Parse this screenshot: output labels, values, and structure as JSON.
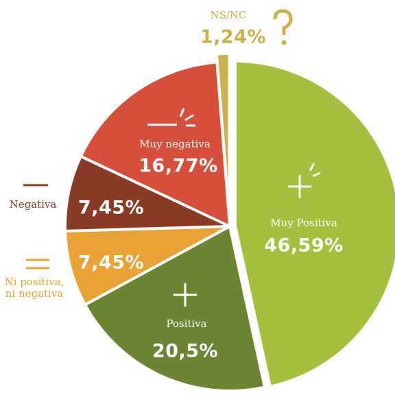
{
  "chart_data": {
    "type": "pie",
    "categories": [
      "Muy Positiva",
      "Positiva",
      "Ni positiva, ni negativa",
      "Negativa",
      "Muy negativa",
      "NS/NC"
    ],
    "values": [
      46.59,
      20.5,
      7.45,
      7.45,
      16.77,
      1.24
    ],
    "value_labels": [
      "46,59%",
      "20,5%",
      "7,45%",
      "7,45%",
      "16,77%",
      "1,24%"
    ],
    "colors": [
      "#a5c03f",
      "#6b8535",
      "#e9a234",
      "#8a3b26",
      "#d54f3b",
      "#c9b24e"
    ]
  }
}
